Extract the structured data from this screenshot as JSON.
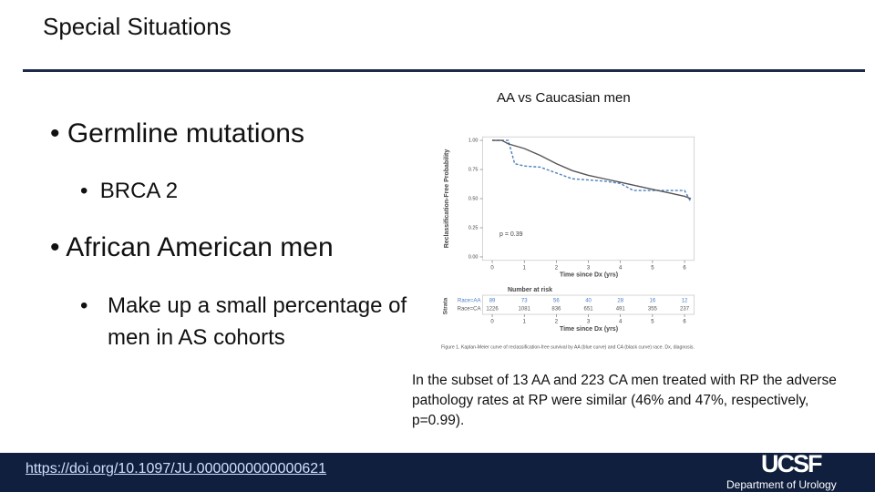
{
  "header": {
    "title": "Special Situations"
  },
  "bullets": [
    {
      "text": "Germline mutations",
      "sub": [
        "BRCA 2"
      ]
    },
    {
      "text": "African American men",
      "sub": [
        "Make up a small percentage of men in AS cohorts"
      ]
    }
  ],
  "figure_heading": "AA vs Caucasian men",
  "chart_data": {
    "type": "line",
    "y_label": "Reclassification-Free Probability",
    "x_label": "Time since Dx (yrs)",
    "ylim": [
      -0.03,
      1.03
    ],
    "yticks": [
      {
        "value": 0,
        "label": "0.00"
      },
      {
        "value": 0.25,
        "label": "0.25"
      },
      {
        "value": 0.5,
        "label": "0.50"
      },
      {
        "value": 0.75,
        "label": "0.75"
      },
      {
        "value": 1,
        "label": "1.00"
      }
    ],
    "xlim": [
      -0.3,
      6.3
    ],
    "xticks": [
      0,
      1,
      2,
      3,
      4,
      5,
      6
    ],
    "annotation": "p = 0.39",
    "series": [
      {
        "name": "Race=AA",
        "color": "#4a7fc1",
        "dashed": true,
        "x": [
          0,
          0.5,
          0.7,
          1,
          1.5,
          2,
          2.5,
          3,
          3.5,
          4,
          4.4,
          5,
          5.5,
          6,
          6.2
        ],
        "values": [
          1.0,
          1.0,
          0.8,
          0.78,
          0.77,
          0.72,
          0.67,
          0.66,
          0.65,
          0.63,
          0.57,
          0.57,
          0.57,
          0.57,
          0.47
        ]
      },
      {
        "name": "Race=CA",
        "color": "#555555",
        "dashed": false,
        "x": [
          0,
          0.3,
          0.5,
          1,
          1.5,
          2,
          2.5,
          3,
          3.5,
          4,
          4.5,
          5,
          5.5,
          6,
          6.2
        ],
        "values": [
          1.0,
          1.0,
          0.97,
          0.93,
          0.87,
          0.8,
          0.74,
          0.7,
          0.67,
          0.64,
          0.61,
          0.58,
          0.55,
          0.52,
          0.5
        ]
      }
    ],
    "risk_table": {
      "title": "Number at risk",
      "strata_label": "Strata",
      "counts": [
        [
          89,
          73,
          56,
          40,
          28,
          16,
          12
        ],
        [
          1226,
          1081,
          836,
          651,
          491,
          355,
          237
        ]
      ]
    },
    "caption": "Figure 1. Kaplan-Meier curve of reclassification-free survival by AA (blue curve) and CA (black curve) race. Dx, diagnosis."
  },
  "note": "In the subset of 13 AA and 223 CA men treated with RP the adverse pathology rates at RP were similar (46% and 47%, respectively, p=0.99).",
  "footer": {
    "link": "https://doi.org/10.1097/JU.0000000000000621",
    "logo": "UCSF",
    "department": "Department of Urology"
  }
}
